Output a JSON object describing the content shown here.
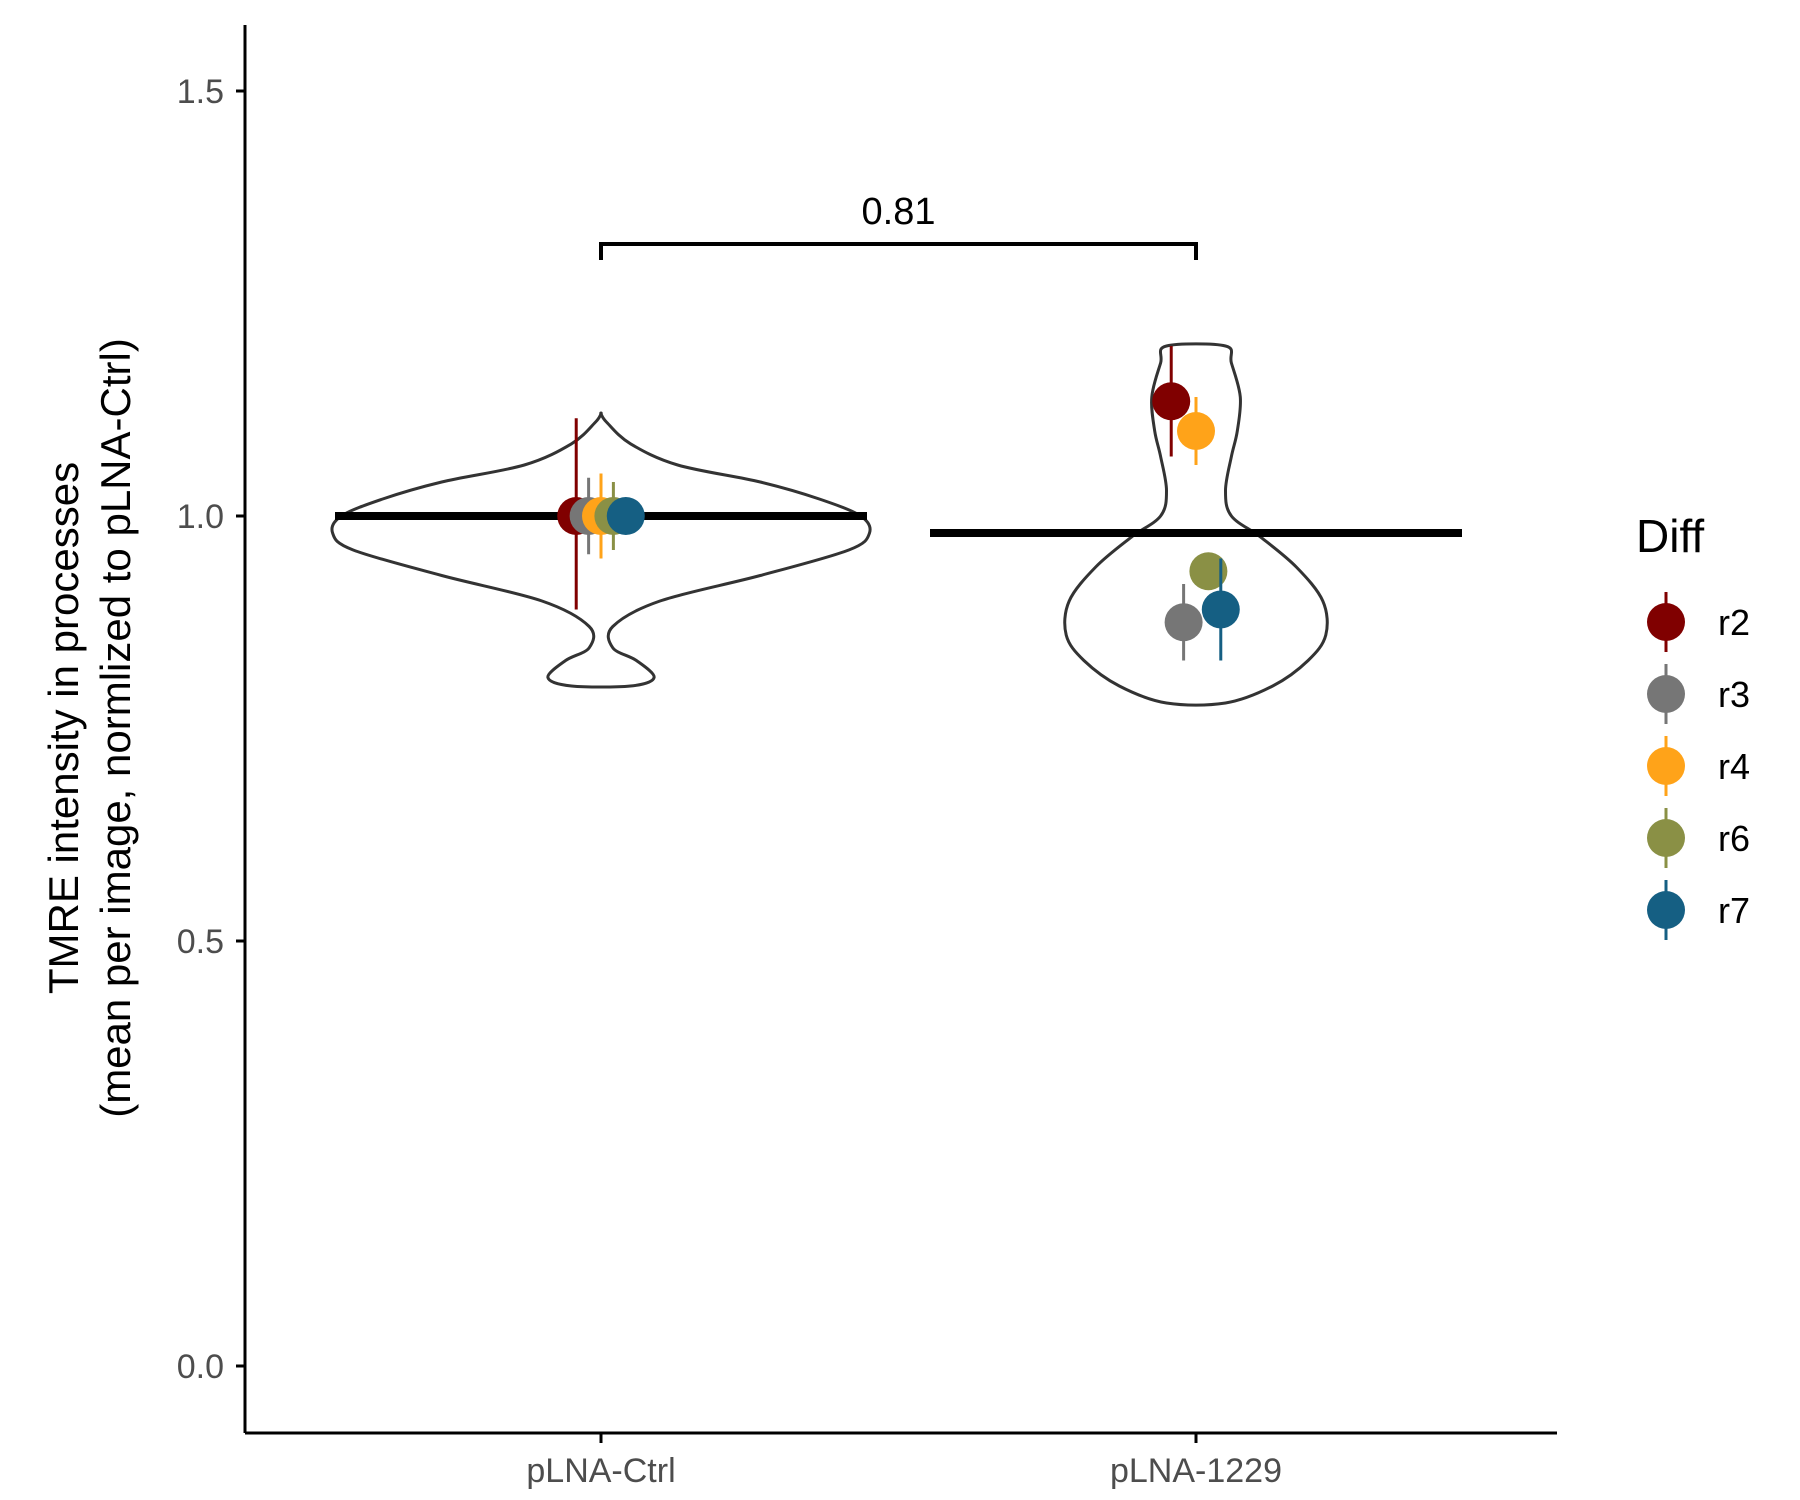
{
  "chart_data": {
    "type": "scatter",
    "ylabel_line1": "TMRE intensity in processes",
    "ylabel_line2": "(mean per image, normlized to pLNA-Ctrl)",
    "xlabel": "",
    "categories": [
      "pLNA-Ctrl",
      "pLNA-1229"
    ],
    "ylim": [
      -0.07,
      1.58
    ],
    "yticks": [
      0.0,
      0.5,
      1.0,
      1.5
    ],
    "ytick_labels": [
      "0.0",
      "0.5",
      "1.0",
      "1.5"
    ],
    "grid": false,
    "legend": {
      "title": "Diff",
      "placement": "right",
      "items": [
        {
          "label": "r2",
          "color": "#800000"
        },
        {
          "label": "r3",
          "color": "#767676"
        },
        {
          "label": "r4",
          "color": "#FFA319"
        },
        {
          "label": "r6",
          "color": "#8A9045"
        },
        {
          "label": "r7",
          "color": "#155F83"
        }
      ]
    },
    "series": [
      {
        "name": "r2",
        "color": "#800000",
        "points": [
          {
            "category": "pLNA-Ctrl",
            "offset": -0.14,
            "y": 1.0,
            "ymin": 0.89,
            "ymax": 1.115
          },
          {
            "category": "pLNA-1229",
            "offset": -0.14,
            "y": 1.135,
            "ymin": 1.07,
            "ymax": 1.2
          }
        ]
      },
      {
        "name": "r3",
        "color": "#767676",
        "points": [
          {
            "category": "pLNA-Ctrl",
            "offset": -0.07,
            "y": 1.0,
            "ymin": 0.955,
            "ymax": 1.045
          },
          {
            "category": "pLNA-1229",
            "offset": -0.07,
            "y": 0.875,
            "ymin": 0.83,
            "ymax": 0.92
          }
        ]
      },
      {
        "name": "r4",
        "color": "#FFA319",
        "points": [
          {
            "category": "pLNA-Ctrl",
            "offset": 0.0,
            "y": 1.0,
            "ymin": 0.95,
            "ymax": 1.05
          },
          {
            "category": "pLNA-1229",
            "offset": 0.0,
            "y": 1.1,
            "ymin": 1.06,
            "ymax": 1.14
          }
        ]
      },
      {
        "name": "r6",
        "color": "#8A9045",
        "points": [
          {
            "category": "pLNA-Ctrl",
            "offset": 0.07,
            "y": 1.0,
            "ymin": 0.96,
            "ymax": 1.04
          },
          {
            "category": "pLNA-1229",
            "offset": 0.07,
            "y": 0.935,
            "ymin": 0.92,
            "ymax": 0.955
          }
        ]
      },
      {
        "name": "r7",
        "color": "#155F83",
        "points": [
          {
            "category": "pLNA-Ctrl",
            "offset": 0.14,
            "y": 1.0,
            "ymin": 1.0,
            "ymax": 1.0
          },
          {
            "category": "pLNA-1229",
            "offset": 0.14,
            "y": 0.89,
            "ymin": 0.83,
            "ymax": 0.95
          }
        ]
      }
    ],
    "means": [
      {
        "category": "pLNA-Ctrl",
        "y": 1.0
      },
      {
        "category": "pLNA-1229",
        "y": 0.98
      }
    ],
    "violins": [
      {
        "category": "pLNA-Ctrl",
        "profile": [
          [
            0.8,
            0.05
          ],
          [
            0.81,
            0.09
          ],
          [
            0.83,
            0.06
          ],
          [
            0.845,
            0.02
          ],
          [
            0.87,
            0.02
          ],
          [
            0.9,
            0.1
          ],
          [
            0.93,
            0.27
          ],
          [
            0.96,
            0.42
          ],
          [
            0.98,
            0.455
          ],
          [
            1.0,
            0.44
          ],
          [
            1.02,
            0.37
          ],
          [
            1.04,
            0.27
          ],
          [
            1.06,
            0.13
          ],
          [
            1.085,
            0.05
          ],
          [
            1.11,
            0.01
          ],
          [
            1.12,
            0.0
          ]
        ]
      },
      {
        "category": "pLNA-1229",
        "profile": [
          [
            0.78,
            0.05
          ],
          [
            0.8,
            0.13
          ],
          [
            0.83,
            0.19
          ],
          [
            0.86,
            0.22
          ],
          [
            0.9,
            0.215
          ],
          [
            0.94,
            0.17
          ],
          [
            0.975,
            0.11
          ],
          [
            1.0,
            0.06
          ],
          [
            1.03,
            0.05
          ],
          [
            1.07,
            0.06
          ],
          [
            1.1,
            0.07
          ],
          [
            1.14,
            0.075
          ],
          [
            1.18,
            0.06
          ],
          [
            1.2,
            0.05
          ]
        ]
      }
    ],
    "comparison": {
      "from": "pLNA-Ctrl",
      "to": "pLNA-1229",
      "y": 1.32,
      "label": "0.81"
    }
  }
}
